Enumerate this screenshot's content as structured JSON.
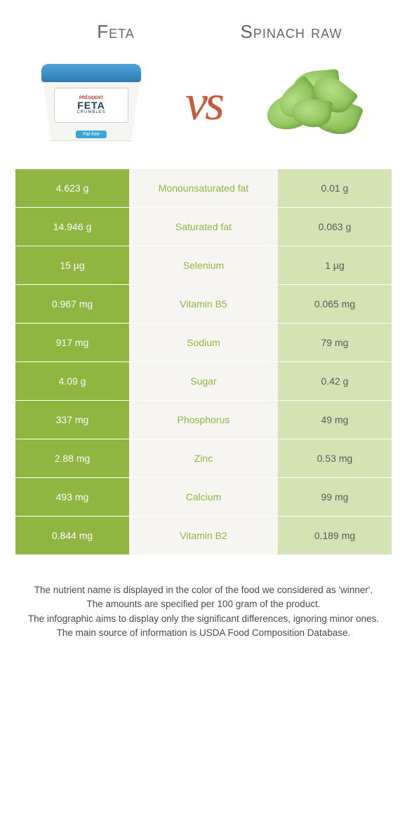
{
  "header": {
    "food1_title": "Feta",
    "food2_title": "Spinach raw",
    "vs_label": "vs"
  },
  "colors": {
    "feta_strong": "#8fb641",
    "spinach_strong": "#8fb641",
    "feta_soft": "#d4e3b3",
    "spinach_soft": "#d4e3b3",
    "mid_bg": "#f6f5f1",
    "vs": "#c85b3b"
  },
  "rows": [
    {
      "nutrient": "Monounsaturated fat",
      "feta": "4.623 g",
      "spinach": "0.01 g",
      "winner": "feta"
    },
    {
      "nutrient": "Saturated fat",
      "feta": "14.946 g",
      "spinach": "0.063 g",
      "winner": "feta"
    },
    {
      "nutrient": "Selenium",
      "feta": "15 µg",
      "spinach": "1 µg",
      "winner": "feta"
    },
    {
      "nutrient": "Vitamin B5",
      "feta": "0.967 mg",
      "spinach": "0.065 mg",
      "winner": "feta"
    },
    {
      "nutrient": "Sodium",
      "feta": "917 mg",
      "spinach": "79 mg",
      "winner": "feta"
    },
    {
      "nutrient": "Sugar",
      "feta": "4.09 g",
      "spinach": "0.42 g",
      "winner": "feta"
    },
    {
      "nutrient": "Phosphorus",
      "feta": "337 mg",
      "spinach": "49 mg",
      "winner": "feta"
    },
    {
      "nutrient": "Zinc",
      "feta": "2.88 mg",
      "spinach": "0.53 mg",
      "winner": "feta"
    },
    {
      "nutrient": "Calcium",
      "feta": "493 mg",
      "spinach": "99 mg",
      "winner": "feta"
    },
    {
      "nutrient": "Vitamin B2",
      "feta": "0.844 mg",
      "spinach": "0.189 mg",
      "winner": "feta"
    }
  ],
  "footer": {
    "line1": "The nutrient name is displayed in the color of the food we considered as 'winner'.",
    "line2": "The amounts are specified per 100 gram of the product.",
    "line3": "The infographic aims to display only the significant differences, ignoring minor ones.",
    "line4": "The main source of information is USDA Food Composition Database."
  },
  "feta_pack": {
    "brand": "PRÉSIDENT",
    "name": "FETA",
    "sub": "CRUMBLES",
    "tag": "Fat free"
  }
}
